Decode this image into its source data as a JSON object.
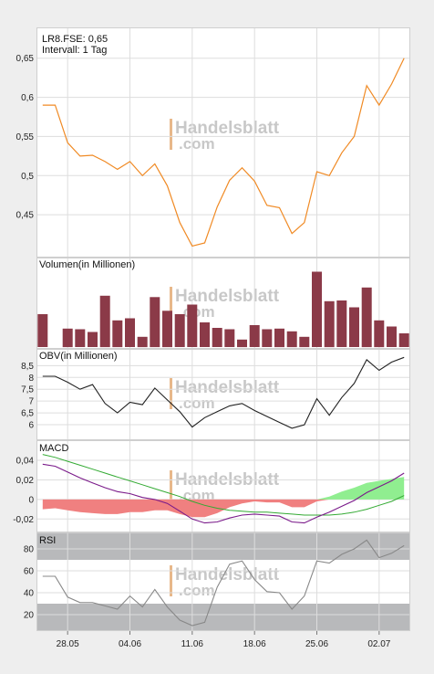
{
  "header": {
    "symbol_line": "LR8.FSE: 0,65",
    "interval_line": "Intervall: 1 Tag"
  },
  "watermark": {
    "brand": "Handelsblatt",
    "suffix": ".com"
  },
  "colors": {
    "price": "#f08a24",
    "volume": "#8b3a48",
    "obv": "#222222",
    "macd": "#7a1a8a",
    "signal": "#33aa33",
    "hist_pos": "#90ee90",
    "hist_neg": "#f08080",
    "rsi": "#888888",
    "rsi_band": "#b8b9bb",
    "grid": "#dddddd",
    "watermark": "#c8c8c8",
    "watermark_bar": "#e8b88a"
  },
  "chart_data": [
    {
      "type": "line",
      "series": [
        {
          "values": [
            0.59,
            0.59,
            0.542,
            0.525,
            0.526,
            0.518,
            0.508,
            0.518,
            0.5,
            0.515,
            0.487,
            0.44,
            0.41,
            0.414,
            0.46,
            0.494,
            0.51,
            0.493,
            0.462,
            0.459,
            0.426,
            0.44,
            0.505,
            0.5,
            0.529,
            0.55,
            0.615,
            0.59,
            0.617,
            0.65
          ]
        }
      ],
      "ylim": [
        0.4,
        0.68
      ],
      "yticks": [
        0.45,
        0.5,
        0.55,
        0.6,
        0.65
      ],
      "ytick_labels": [
        "0,45",
        "0,5",
        "0,55",
        "0,6",
        "0,65"
      ],
      "grid": true
    },
    {
      "type": "bar",
      "title": "Volumen(in Millionen)",
      "values": [
        0.48,
        0,
        0.27,
        0.26,
        0.22,
        0.75,
        0.39,
        0.42,
        0.15,
        0.73,
        0.53,
        0.48,
        0.62,
        0.36,
        0.28,
        0.26,
        0.11,
        0.32,
        0.26,
        0.27,
        0.23,
        0.15,
        1.1,
        0.67,
        0.68,
        0.58,
        0.87,
        0.39,
        0.3,
        0.2
      ],
      "ylim": [
        0,
        1.12
      ],
      "grid": true
    },
    {
      "type": "line",
      "title": "OBV(in Millionen)",
      "series": [
        {
          "values": [
            8.05,
            8.05,
            7.8,
            7.5,
            7.7,
            6.9,
            6.5,
            6.95,
            6.85,
            7.55,
            7.05,
            6.55,
            5.9,
            6.3,
            6.55,
            6.8,
            6.9,
            6.6,
            6.35,
            6.1,
            5.85,
            6.0,
            7.1,
            6.4,
            7.15,
            7.75,
            8.75,
            8.3,
            8.65,
            8.85
          ]
        }
      ],
      "ylim": [
        5.5,
        8.9
      ],
      "yticks": [
        6,
        6.5,
        7,
        7.5,
        8,
        8.5
      ],
      "ytick_labels": [
        "6",
        "6,5",
        "7",
        "7,5",
        "8",
        "8,5"
      ],
      "grid": true
    },
    {
      "type": "line",
      "title": "MACD",
      "series": [
        {
          "values": [
            0.036,
            0.034,
            0.028,
            0.022,
            0.017,
            0.012,
            0.008,
            0.006,
            0.002,
            0.0,
            -0.004,
            -0.012,
            -0.02,
            -0.024,
            -0.023,
            -0.019,
            -0.016,
            -0.015,
            -0.016,
            -0.017,
            -0.023,
            -0.024,
            -0.018,
            -0.013,
            -0.007,
            -0.001,
            0.007,
            0.013,
            0.019,
            0.027
          ]
        },
        {
          "values": [
            0.046,
            0.043,
            0.039,
            0.035,
            0.031,
            0.027,
            0.023,
            0.019,
            0.015,
            0.011,
            0.007,
            0.003,
            -0.002,
            -0.006,
            -0.009,
            -0.011,
            -0.012,
            -0.013,
            -0.013,
            -0.014,
            -0.015,
            -0.016,
            -0.016,
            -0.016,
            -0.015,
            -0.013,
            -0.01,
            -0.006,
            -0.002,
            0.004
          ]
        }
      ],
      "histogram": [
        -0.01,
        -0.009,
        -0.011,
        -0.013,
        -0.014,
        -0.015,
        -0.015,
        -0.013,
        -0.013,
        -0.011,
        -0.011,
        -0.015,
        -0.018,
        -0.018,
        -0.014,
        -0.008,
        -0.004,
        -0.002,
        -0.003,
        -0.003,
        -0.008,
        -0.008,
        -0.002,
        0.003,
        0.008,
        0.012,
        0.017,
        0.019,
        0.021,
        0.023
      ],
      "ylim": [
        -0.03,
        0.055
      ],
      "yticks": [
        -0.02,
        0,
        0.02,
        0.04
      ],
      "ytick_labels": [
        "-0,02",
        "0",
        "0,02",
        "0,04"
      ],
      "grid": true
    },
    {
      "type": "line",
      "title": "RSI",
      "series": [
        {
          "values": [
            55,
            55,
            36,
            31,
            31,
            28,
            25,
            37,
            27,
            43,
            27,
            15,
            10,
            13,
            45,
            66,
            69,
            52,
            41,
            40,
            25,
            37,
            69,
            67,
            75,
            80,
            88,
            72,
            76,
            83
          ]
        }
      ],
      "ylim": [
        5,
        95
      ],
      "yticks": [
        20,
        40,
        60,
        80
      ],
      "ytick_labels": [
        "20",
        "40",
        "60",
        "80"
      ],
      "bands": [
        [
          70,
          95
        ],
        [
          5,
          30
        ]
      ],
      "grid": true
    }
  ],
  "x_axis": {
    "tick_labels": [
      "28.05",
      "04.06",
      "11.06",
      "18.06",
      "25.06",
      "02.07"
    ],
    "tick_index": [
      2,
      7,
      12,
      17,
      22,
      27
    ]
  }
}
